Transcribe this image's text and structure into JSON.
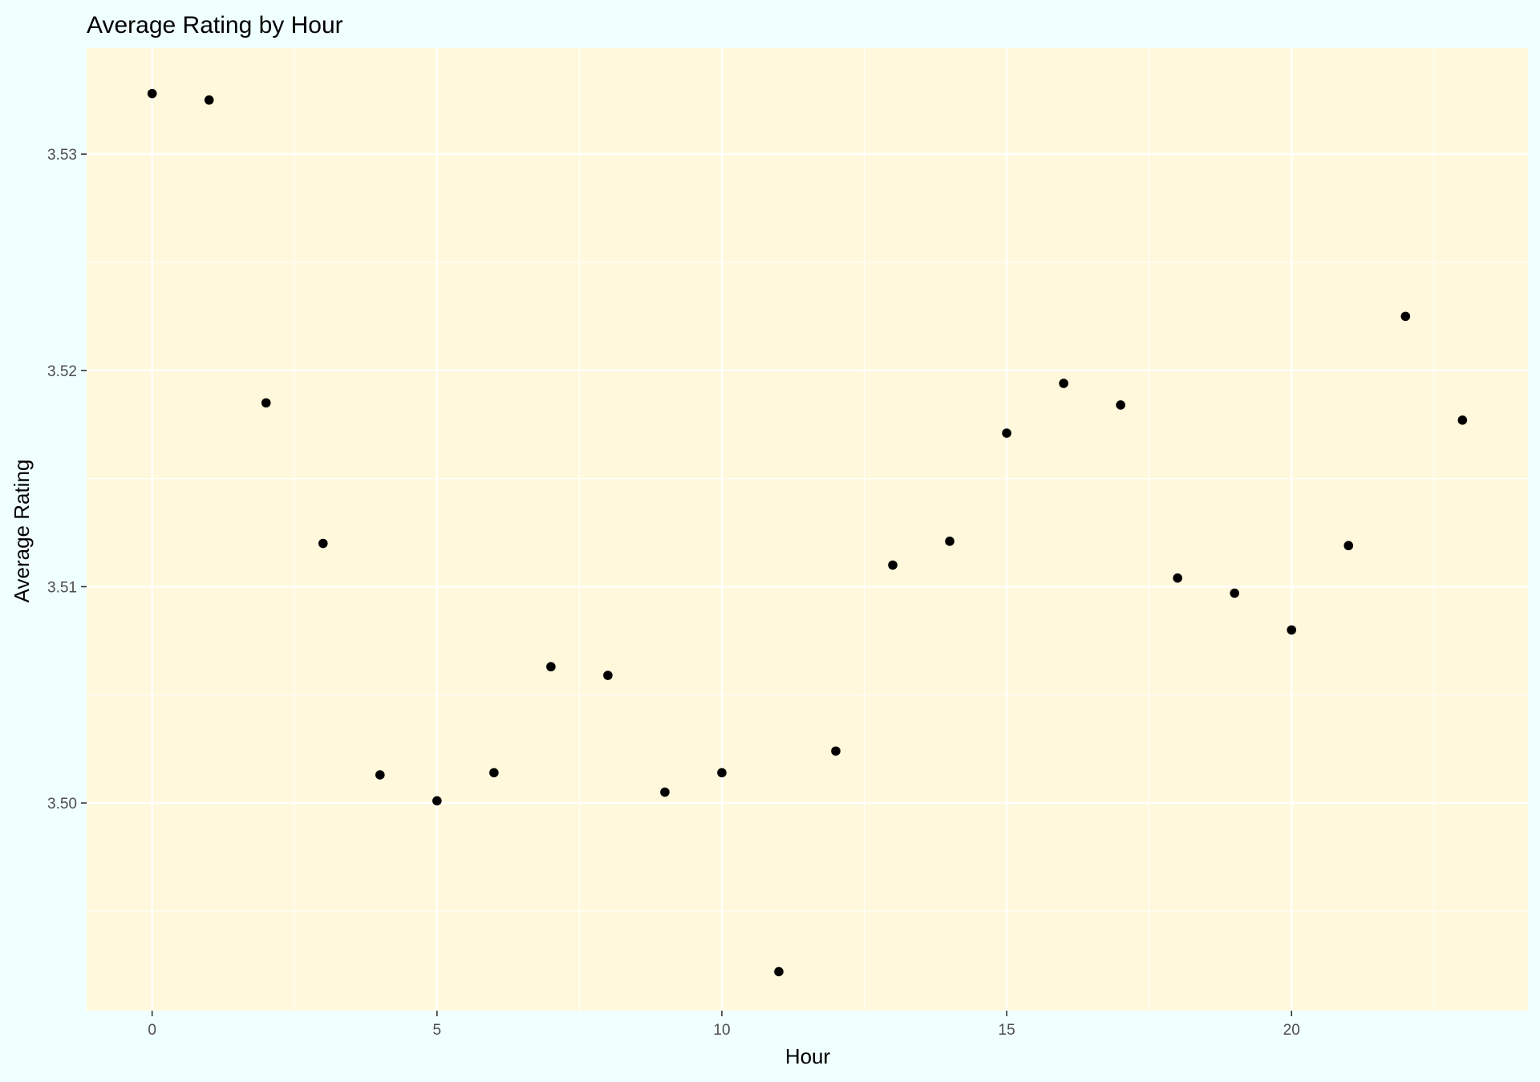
{
  "chart_data": {
    "type": "scatter",
    "title": "Average Rating by Hour",
    "xlabel": "Hour",
    "ylabel": "Average Rating",
    "x": [
      0,
      1,
      2,
      3,
      4,
      5,
      6,
      7,
      8,
      9,
      10,
      11,
      12,
      13,
      14,
      15,
      16,
      17,
      18,
      19,
      20,
      21,
      22,
      23
    ],
    "y": [
      3.5328,
      3.5325,
      3.5185,
      3.512,
      3.5013,
      3.5001,
      3.5014,
      3.5063,
      3.5059,
      3.5005,
      3.5014,
      3.4922,
      3.5024,
      3.511,
      3.5121,
      3.5171,
      3.5194,
      3.5184,
      3.5104,
      3.5097,
      3.508,
      3.5119,
      3.5225,
      3.5177
    ],
    "xlim": [
      -1.15,
      24.15
    ],
    "ylim": [
      3.4904,
      3.5349
    ],
    "x_ticks": [
      0,
      5,
      10,
      15,
      20
    ],
    "x_tick_labels": [
      "0",
      "5",
      "10",
      "15",
      "20"
    ],
    "y_ticks": [
      3.5,
      3.51,
      3.52,
      3.53
    ],
    "y_tick_labels": [
      "3.50",
      "3.51",
      "3.52",
      "3.53"
    ],
    "grid": true,
    "colors": {
      "page_background": "#F0FFFF",
      "panel_background": "#FFF8DC",
      "grid": "#FFFFFF",
      "points": "#000000",
      "tick_labels": "#4D4D4D",
      "text": "#000000"
    }
  }
}
